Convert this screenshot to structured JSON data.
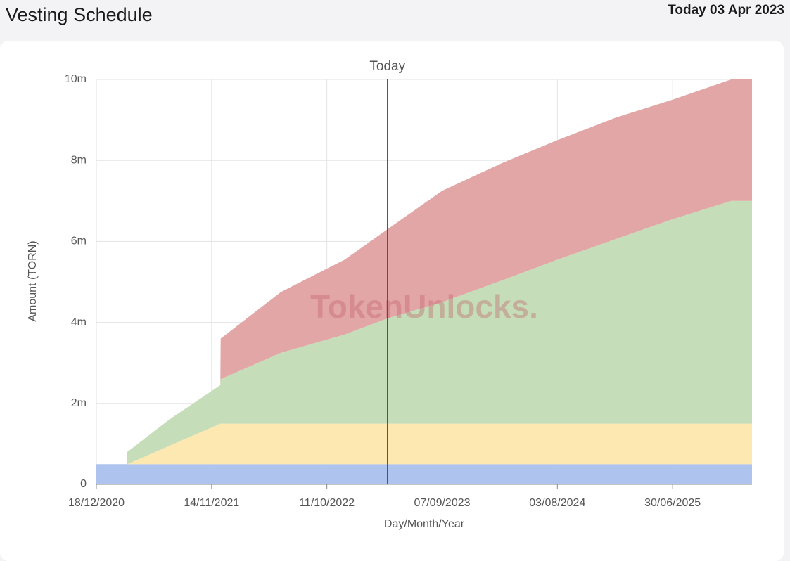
{
  "header": {
    "title": "Vesting Schedule",
    "today": "Today 03 Apr 2023"
  },
  "chart_data": {
    "type": "area",
    "stacked": true,
    "watermark": "TokenUnlocks.",
    "x_label": "Day/Month/Year",
    "y_label": "Amount (TORN)",
    "x": [
      "2020-12-18",
      "2021-03-16",
      "2021-03-17",
      "2021-07-15",
      "2021-12-09",
      "2021-12-10",
      "2022-06-01",
      "2022-12-01",
      "2023-04-03",
      "2023-09-07",
      "2024-03-01",
      "2024-08-03",
      "2025-01-15",
      "2025-06-30",
      "2025-12-15",
      "2026-02-13"
    ],
    "series": [
      {
        "color": "#aec3ee",
        "values": [
          500000,
          500000,
          500000,
          500000,
          500000,
          500000,
          500000,
          500000,
          500000,
          500000,
          500000,
          500000,
          500000,
          500000,
          500000,
          500000
        ]
      },
      {
        "color": "#fce8b0",
        "values": [
          0,
          0,
          0,
          450000,
          1000000,
          1000000,
          1000000,
          1000000,
          1000000,
          1000000,
          1000000,
          1000000,
          1000000,
          1000000,
          1000000,
          1000000
        ]
      },
      {
        "color": "#c5ddb8",
        "values": [
          0,
          0,
          300000,
          650000,
          950000,
          1100000,
          1750000,
          2200000,
          2600000,
          3000000,
          3550000,
          4050000,
          4550000,
          5050000,
          5500000,
          5500000
        ]
      },
      {
        "color": "#e2a6a6",
        "values": [
          0,
          0,
          0,
          0,
          0,
          1000000,
          1500000,
          1850000,
          2200000,
          2750000,
          2900000,
          2950000,
          3000000,
          2950000,
          3000000,
          3000000
        ]
      }
    ],
    "xlim": [
      "2020-12-18",
      "2026-02-13"
    ],
    "xticks": [
      {
        "value": "2020-12-18",
        "label": "18/12/2020"
      },
      {
        "value": "2021-11-14",
        "label": "14/11/2021"
      },
      {
        "value": "2022-10-11",
        "label": "11/10/2022"
      },
      {
        "value": "2023-09-07",
        "label": "07/09/2023"
      },
      {
        "value": "2024-08-03",
        "label": "03/08/2024"
      },
      {
        "value": "2025-06-30",
        "label": "30/06/2025"
      }
    ],
    "ylim": [
      0,
      10000000
    ],
    "yticks": [
      0,
      {
        "value": 2000000,
        "label": "2m"
      },
      {
        "value": 4000000,
        "label": "4m"
      },
      {
        "value": 6000000,
        "label": "6m"
      },
      {
        "value": 8000000,
        "label": "8m"
      },
      {
        "value": 10000000,
        "label": "10m"
      }
    ],
    "grid": true,
    "annotations": [
      {
        "x": "2023-04-03",
        "label": "Today",
        "color": "#c8193c"
      }
    ]
  }
}
